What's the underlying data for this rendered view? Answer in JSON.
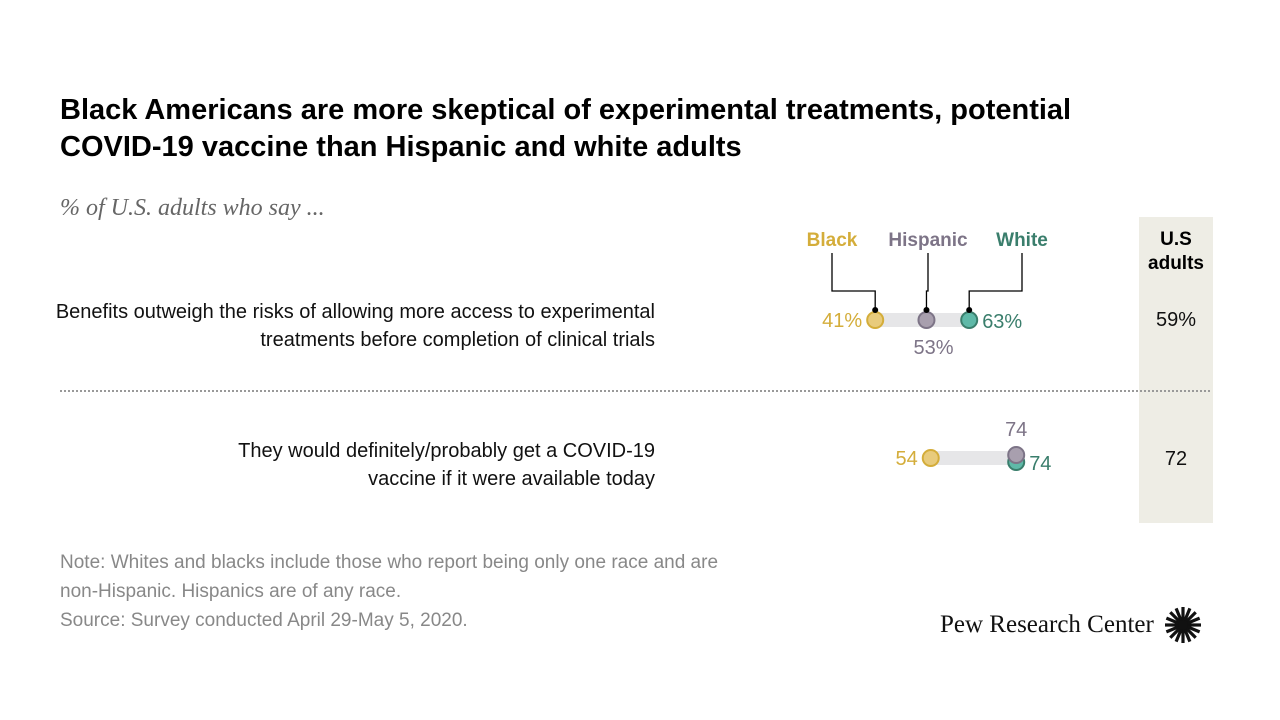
{
  "title": "Black Americans are more skeptical of experimental treatments, potential COVID-19 vaccine than Hispanic and white adults",
  "subtitle": "% of U.S. adults who say ...",
  "us_adults_header": "U.S adults",
  "note": "Note: Whites and blacks include those who report being only one race and are non-Hispanic. Hispanics are of any race.",
  "source": "Source: Survey conducted April 29-May 5, 2020.",
  "logo": "Pew Research Center",
  "colors": {
    "Black": "#e8cb7c",
    "Hispanic": "#a89fae",
    "White": "#5fb9a8",
    "BlackText": "#d4ad3a",
    "HispanicText": "#7d7487",
    "WhiteText": "#3a7e6c"
  },
  "chart_data": {
    "type": "dot-range",
    "series": [
      "Black",
      "Hispanic",
      "White"
    ],
    "rows": [
      {
        "label": "Benefits outweigh the risks of allowing more access to experimental treatments before completion of clinical trials",
        "values": {
          "Black": 41,
          "Hispanic": 53,
          "White": 63
        },
        "labels": {
          "Black": "41%",
          "Hispanic": "53%",
          "White": "63%"
        },
        "us_adults": "59%"
      },
      {
        "label": "They would definitely/probably get a COVID-19 vaccine if it were available today",
        "values": {
          "Black": 54,
          "Hispanic": 74,
          "White": 74
        },
        "labels": {
          "Black": "54",
          "Hispanic": "74",
          "White": "74"
        },
        "us_adults": "72"
      }
    ]
  }
}
